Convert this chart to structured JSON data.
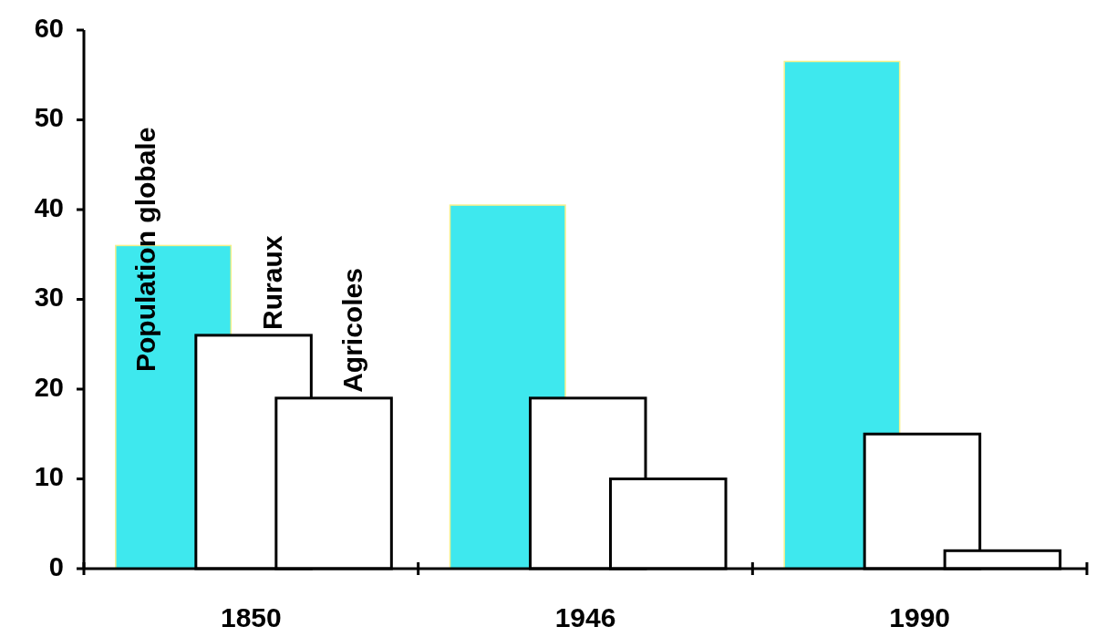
{
  "chart_data": {
    "type": "bar",
    "categories": [
      "1850",
      "1946",
      "1990"
    ],
    "series": [
      {
        "name": "Population globale",
        "color": "#3ee8ee",
        "values": [
          36,
          40.5,
          56.5
        ]
      },
      {
        "name": "Ruraux",
        "color": "#ffffff",
        "values": [
          26,
          19,
          15
        ]
      },
      {
        "name": "Agricoles",
        "color": "#ffffff",
        "values": [
          19,
          10,
          2
        ]
      }
    ],
    "ylim": [
      0,
      60
    ],
    "yticks": [
      0,
      10,
      20,
      30,
      40,
      50,
      60
    ],
    "grid": false
  }
}
